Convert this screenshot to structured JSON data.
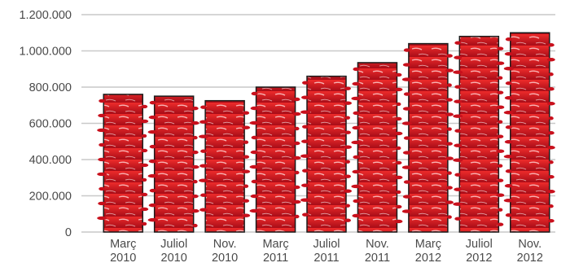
{
  "chart_data": {
    "type": "bar",
    "categories": [
      [
        "Març",
        "2010"
      ],
      [
        "Juliol",
        "2010"
      ],
      [
        "Nov.",
        "2010"
      ],
      [
        "Març",
        "2011"
      ],
      [
        "Juliol",
        "2011"
      ],
      [
        "Nov.",
        "2011"
      ],
      [
        "Març",
        "2012"
      ],
      [
        "Juliol",
        "2012"
      ],
      [
        "Nov.",
        "2012"
      ]
    ],
    "values": [
      760000,
      750000,
      725000,
      800000,
      860000,
      935000,
      1040000,
      1080000,
      1100000
    ],
    "ylim": [
      0,
      1200000
    ],
    "yticks": [
      0,
      200000,
      400000,
      600000,
      800000,
      1000000,
      1200000
    ],
    "ytick_labels": [
      "0",
      "200.000",
      "400.000",
      "600.000",
      "800.000",
      "1.000.000",
      "1.200.000"
    ],
    "grid": true,
    "bar_color": "#c8101c",
    "bar_highlight": "#ee2b2b",
    "grid_color": "#c9c9c9"
  }
}
